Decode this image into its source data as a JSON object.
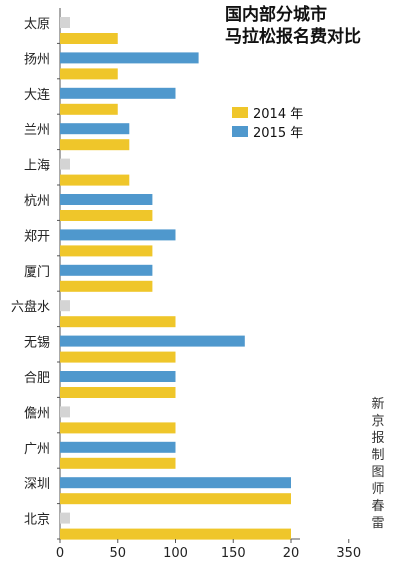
{
  "chart_data": {
    "type": "bar",
    "orientation": "horizontal",
    "title_lines": [
      "国内部分城市",
      "马拉松报名费对比"
    ],
    "categories": [
      "太原",
      "扬州",
      "大连",
      "兰州",
      "上海",
      "杭州",
      "郑开",
      "厦门",
      "六盘水",
      "无锡",
      "合肥",
      "儋州",
      "广州",
      "深圳",
      "北京"
    ],
    "series": [
      {
        "name": "2014 年",
        "color": "#efc62a",
        "values": [
          50,
          50,
          50,
          60,
          60,
          80,
          80,
          80,
          100,
          100,
          100,
          100,
          100,
          200,
          200
        ]
      },
      {
        "name": "2015 年",
        "color": "#4f98cd",
        "values": [
          null,
          120,
          100,
          60,
          null,
          80,
          100,
          80,
          null,
          160,
          100,
          null,
          100,
          200,
          null
        ]
      }
    ],
    "missing_color": "#d4d4d4",
    "xlim": [
      0,
      250
    ],
    "xticks": [
      0,
      50,
      100,
      150,
      "20",
      "350"
    ],
    "legend_position": "top-right",
    "grid": false,
    "credit": "新京报制图师春雷"
  }
}
